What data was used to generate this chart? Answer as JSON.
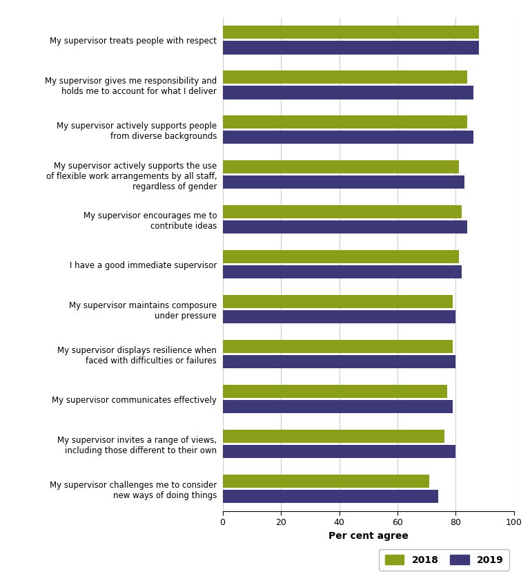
{
  "categories": [
    "My supervisor treats people with respect",
    "My supervisor gives me responsibility and\nholds me to account for what I deliver",
    "My supervisor actively supports people\nfrom diverse backgrounds",
    "My supervisor actively supports the use\nof flexible work arrangements by all staff,\nregardless of gender",
    "My supervisor encourages me to\ncontribute ideas",
    "I have a good immediate supervisor",
    "My supervisor maintains composure\nunder pressure",
    "My supervisor displays resilience when\nfaced with difficulties or failures",
    "My supervisor communicates effectively",
    "My supervisor invites a range of views,\nincluding those different to their own",
    "My supervisor challenges me to consider\nnew ways of doing things"
  ],
  "values_2018": [
    88,
    84,
    84,
    81,
    82,
    81,
    79,
    79,
    77,
    76,
    71
  ],
  "values_2019": [
    88,
    86,
    86,
    83,
    84,
    82,
    80,
    80,
    79,
    80,
    74
  ],
  "color_2018": "#8B9E1A",
  "color_2019": "#3D3878",
  "xlabel": "Per cent agree",
  "xlim": [
    0,
    100
  ],
  "xticks": [
    0,
    20,
    40,
    60,
    80,
    100
  ],
  "legend_2018": "2018",
  "legend_2019": "2019",
  "background_color": "#ffffff",
  "grid_color": "#cccccc"
}
